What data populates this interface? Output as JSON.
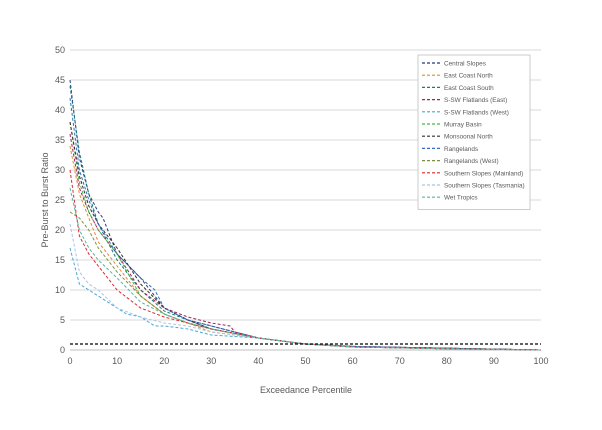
{
  "chart_data": {
    "type": "line",
    "xlabel": "Exceedance Percentile",
    "ylabel": "Pre-Burst to Burst Ratio",
    "xlim": [
      0,
      100
    ],
    "ylim": [
      0,
      50
    ],
    "xticks": [
      0,
      10,
      20,
      30,
      40,
      50,
      60,
      70,
      80,
      90,
      100
    ],
    "yticks": [
      0,
      5,
      10,
      15,
      20,
      25,
      30,
      35,
      40,
      45,
      50
    ],
    "grid": "horizontal",
    "legend_position": "top-right",
    "reference_line": {
      "y": 1,
      "color": "#000000"
    },
    "series": [
      {
        "name": "Central Slopes",
        "color": "#1f3f7a",
        "x": [
          0,
          2,
          4,
          6,
          7,
          10,
          15,
          20,
          25,
          30,
          35,
          40,
          50,
          60,
          80,
          100
        ],
        "y": [
          45,
          32,
          26,
          23,
          22,
          16,
          12,
          7,
          5,
          4,
          3,
          2,
          1,
          0.6,
          0.3,
          0
        ]
      },
      {
        "name": "East Coast North",
        "color": "#e4873a",
        "x": [
          0,
          2,
          4,
          6,
          10,
          15,
          20,
          25,
          30,
          40,
          50,
          60,
          80,
          100
        ],
        "y": [
          34,
          26,
          22,
          18,
          14,
          9,
          6,
          4.5,
          3,
          2,
          1,
          0.5,
          0.3,
          0
        ]
      },
      {
        "name": "East Coast South",
        "color": "#1a7a7a",
        "x": [
          0,
          2,
          4,
          6,
          10,
          15,
          20,
          25,
          30,
          40,
          50,
          60,
          80,
          100
        ],
        "y": [
          44,
          33,
          26,
          21,
          15,
          10,
          6.5,
          5,
          3.5,
          2,
          1,
          0.6,
          0.3,
          0
        ]
      },
      {
        "name": "S-SW Flatlands (East)",
        "color": "#a3245a",
        "x": [
          0,
          2,
          4,
          6,
          10,
          15,
          20,
          25,
          30,
          34,
          35,
          40,
          50,
          60,
          80,
          100
        ],
        "y": [
          36,
          27,
          23,
          20,
          16,
          10,
          7,
          5.5,
          4.5,
          4,
          3,
          2,
          1,
          0.6,
          0.3,
          0
        ]
      },
      {
        "name": "S-SW Flatlands (West)",
        "color": "#4aa6d6",
        "x": [
          0,
          2,
          4,
          6,
          10,
          12,
          15,
          18,
          20,
          25,
          30,
          40,
          50,
          60,
          80,
          100
        ],
        "y": [
          17,
          11,
          10,
          9,
          7,
          6,
          5.5,
          4,
          4,
          3.5,
          2.5,
          2,
          1,
          0.5,
          0.2,
          0
        ]
      },
      {
        "name": "Murray Basin",
        "color": "#48b848",
        "x": [
          0,
          2,
          4,
          6,
          10,
          15,
          20,
          25,
          30,
          40,
          50,
          60,
          80,
          100
        ],
        "y": [
          38,
          28,
          23,
          20,
          16,
          9,
          6,
          4.5,
          3.5,
          2,
          1,
          0.5,
          0.3,
          0
        ]
      },
      {
        "name": "Monsoonal North",
        "color": "#3a2a2a",
        "x": [
          0,
          2,
          4,
          6,
          10,
          15,
          20,
          25,
          30,
          40,
          50,
          60,
          80,
          100
        ],
        "y": [
          38,
          29,
          24,
          21,
          17,
          11,
          7,
          5,
          3.5,
          2,
          1,
          0.5,
          0.3,
          0
        ]
      },
      {
        "name": "Rangelands",
        "color": "#2e6fbf",
        "x": [
          0,
          2,
          4,
          6,
          10,
          15,
          18,
          20,
          25,
          30,
          40,
          50,
          60,
          80,
          100
        ],
        "y": [
          42,
          30,
          25,
          21,
          16,
          12,
          10,
          7,
          5,
          4,
          2,
          1,
          0.6,
          0.3,
          0
        ]
      },
      {
        "name": "Rangelands (West)",
        "color": "#7f8f3a",
        "x": [
          0,
          2,
          4,
          6,
          10,
          15,
          20,
          25,
          30,
          40,
          50,
          60,
          80,
          100
        ],
        "y": [
          23,
          22,
          20,
          17,
          13,
          9,
          6,
          4.5,
          3.5,
          2,
          1,
          0.5,
          0.2,
          0
        ]
      },
      {
        "name": "Southern Slopes (Mainland)",
        "color": "#e0262e",
        "x": [
          0,
          2,
          4,
          6,
          10,
          15,
          20,
          25,
          30,
          40,
          50,
          60,
          80,
          100
        ],
        "y": [
          30,
          19,
          16,
          14,
          10,
          7,
          5.5,
          4.5,
          3.5,
          2,
          1,
          0.5,
          0.2,
          0
        ]
      },
      {
        "name": "Southern Slopes (Tasmania)",
        "color": "#a9c4e4",
        "x": [
          0,
          2,
          4,
          6,
          10,
          15,
          20,
          25,
          30,
          40,
          50,
          60,
          80,
          100
        ],
        "y": [
          21,
          13,
          11,
          10,
          7,
          5.5,
          4.5,
          4,
          3,
          2,
          1,
          0.5,
          0.2,
          0
        ]
      },
      {
        "name": "Wet Tropics",
        "color": "#4fb8a0",
        "x": [
          0,
          2,
          4,
          6,
          10,
          15,
          20,
          25,
          30,
          40,
          50,
          60,
          80,
          100
        ],
        "y": [
          27,
          20,
          17,
          15,
          12,
          8,
          6,
          4.5,
          3.5,
          2,
          1,
          0.5,
          0.2,
          0
        ]
      }
    ]
  }
}
